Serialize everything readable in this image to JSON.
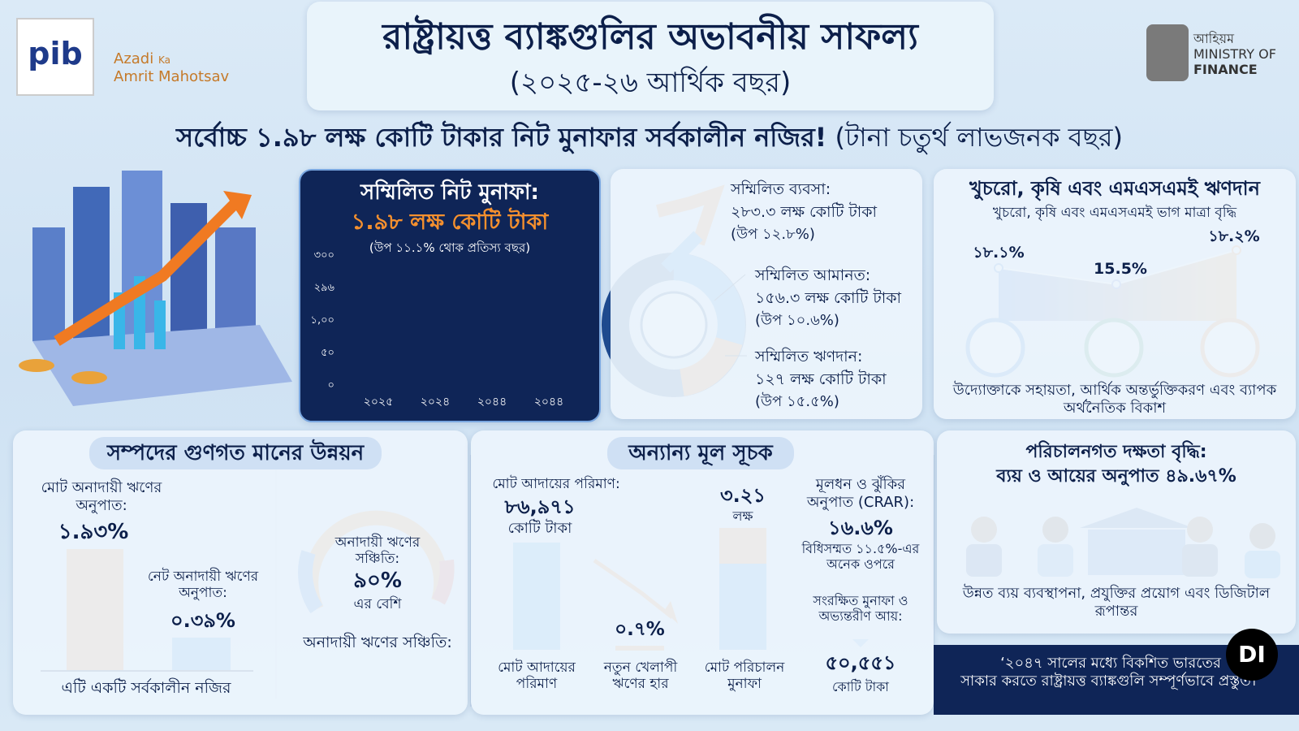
{
  "header": {
    "title": "রাষ্ট্রায়ত্ত ব্যাঙ্কগুলির অভাবনীয় সাফল্য",
    "subtitle": "(২০২৫-২৬ আর্থিক বছর)",
    "logos": {
      "pib": "pib",
      "azadi": "Azadi",
      "ka": "Ka",
      "amrit": "Amrit Mahotsav",
      "ministry_bn": "আহিয়ম",
      "ministry_of": "MINISTRY OF",
      "finance": "FINANCE"
    }
  },
  "headline": {
    "main": "সর্বোচ্চ ১.৯৮ লক্ষ কোটি টাকার নিট মুনাফার সর্বকালীন নজির!",
    "note": "(টানা চতুর্থ লাভজনক বছর)"
  },
  "profit": {
    "title": "সম্মিলিত নিট মুনাফা:",
    "amount": "১.৯৮ লক্ষ কোটি টাকা",
    "note": "(উপ ১১.১% থোক প্রতিস্য বছর)",
    "y_labels": [
      "৩০০",
      "২৯৬",
      "১,০০",
      "৫০",
      "০"
    ],
    "x_labels": [
      "২০২৫",
      "২০২৪",
      "২০৪৪",
      "২০৪৪"
    ]
  },
  "business": {
    "items": [
      {
        "label": "সম্মিলিত ব্যবসা:",
        "value": "২৮৩.৩ লক্ষ কোটি টাকা",
        "growth": "(উপ ১২.৮%)"
      },
      {
        "label": "সম্মিলিত আমানত:",
        "value": "১৫৬.৩ লক্ষ কোটি টাকা",
        "growth": "(উপ ১০.৬%)"
      },
      {
        "label": "সম্মিলিত ঋণদান:",
        "value": "১২৭ লক্ষ কোটি টাকা",
        "growth": "(উপ ১৫.৫%)"
      }
    ]
  },
  "lending": {
    "title": "খুচরো, কৃষি এবং এমএসএমই ঋণদান",
    "subtitle": "খুচরো, কৃষি এবং এমএসএমই ভাগ মাত্রা বৃদ্ধি",
    "points": [
      "১৮.১%",
      "15.5%",
      "১৮.২%"
    ],
    "caption": "উদ্যোক্তাকে সহায়তা, আর্থিক অন্তর্ভুক্তিকরণ এবং ব্যাপক অর্থনৈতিক বিকাশ"
  },
  "asset": {
    "title": "সম্পদের গুণগত মানের উন্নয়ন",
    "gross_label": "মোট অনাদায়ী ঋণের অনুপাত:",
    "gross_value": "১.৯৩%",
    "net_label": "নেট অনাদায়ী ঋণের অনুপাত:",
    "net_value": "০.৩৯%",
    "footer": "এটি একটি সর্বকালীন নজির",
    "gauge_label": "অনাদায়ী ঋণের সঞ্চিতি:",
    "gauge_value": "৯০%",
    "gauge_note": "এর বেশি",
    "gauge_caption": "অনাদায়ী ঋণের সঞ্চিতি:"
  },
  "indicators": {
    "title": "অন্যান্য মূল সূচক",
    "recovery_label": "মোট আদায়ের পরিমাণ:",
    "recovery_value": "৮৬,৯৭১",
    "recovery_unit": "কোটি টাকা",
    "slippage_value": "০.৭%",
    "op_profit_value": "৩.২১",
    "op_profit_unit": "লক্ষ",
    "bar_labels": [
      "মোট আদায়ের পরিমাণ",
      "নতুন খেলাপী ঋণের হার",
      "মোট পরিচালন মুনাফা"
    ],
    "crar_label": "মূলধন ও ঝুঁকির অনুপাত (CRAR):",
    "crar_value": "১৬.৬%",
    "crar_note": "বিধিসম্মত ১১.৫%-এর অনেক ওপরে",
    "reserves_label": "সংরক্ষিত মুনাফা ও অভ্যন্তরীণ আয়:",
    "reserves_value": "৫০,৫৫১",
    "reserves_unit": "কোটি টাকা"
  },
  "efficiency": {
    "title": "পরিচালনগত দক্ষতা বৃদ্ধি:",
    "subtitle": "ব্যয় ও আয়ের অনুপাত ৪৯.৬৭%",
    "caption": "উন্নত ব্যয় ব্যবস্থাপনা, প্রযুক্তির প্রয়োগ এবং ডিজিটাল রূপান্তর"
  },
  "quote": {
    "lines": [
      "‘২০৪৭ সালের মধ্যে বিকশিত ভারতের",
      "সাকার করতে রাষ্ট্রায়ত্ত ব্যাঙ্কগুলি সম্পূর্ণভাবে প্রস্তুত।’"
    ],
    "logo": "DI"
  }
}
